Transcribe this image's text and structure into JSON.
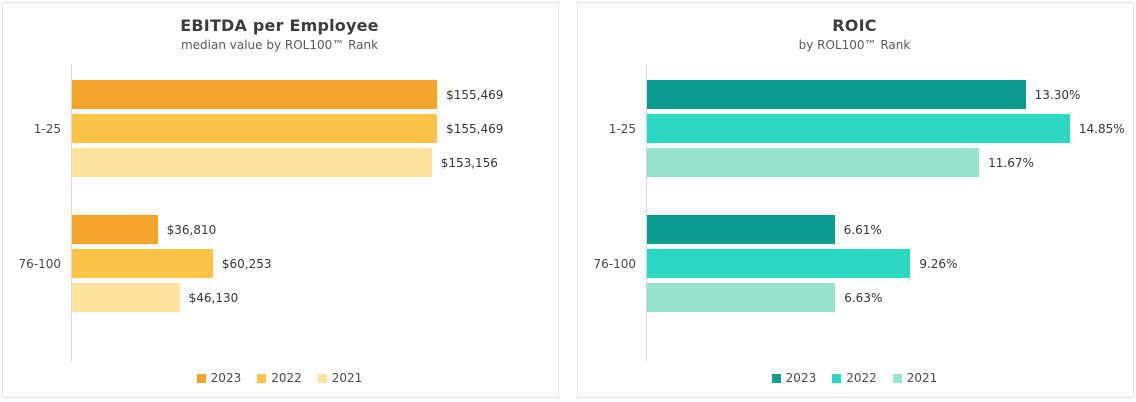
{
  "chart_data": [
    {
      "type": "bar",
      "orientation": "horizontal",
      "title": "EBITDA per Employee",
      "subtitle": "median value by ROL100™ Rank",
      "categories": [
        "1-25",
        "76-100"
      ],
      "series": [
        {
          "name": "2023",
          "color": "#F4A32B",
          "values": [
            155469,
            36810
          ],
          "labels": [
            "$155,469",
            "$36,810"
          ]
        },
        {
          "name": "2022",
          "color": "#FBC347",
          "values": [
            155469,
            60253
          ],
          "labels": [
            "$155,469",
            "$60,253"
          ]
        },
        {
          "name": "2021",
          "color": "#FCE29B",
          "values": [
            153156,
            46130
          ],
          "labels": [
            "$153,156",
            "$46,130"
          ]
        }
      ],
      "xlim": [
        0,
        200000
      ],
      "grid": false,
      "legend_position": "bottom"
    },
    {
      "type": "bar",
      "orientation": "horizontal",
      "title": "ROIC",
      "subtitle": "by ROL100™ Rank",
      "categories": [
        "1-25",
        "76-100"
      ],
      "series": [
        {
          "name": "2023",
          "color": "#0B9B8D",
          "values": [
            13.3,
            6.61
          ],
          "labels": [
            "13.30%",
            "6.61%"
          ]
        },
        {
          "name": "2022",
          "color": "#2BD8C0",
          "values": [
            14.85,
            9.26
          ],
          "labels": [
            "14.85%",
            "9.26%"
          ]
        },
        {
          "name": "2021",
          "color": "#97E5CF",
          "values": [
            11.67,
            6.63
          ],
          "labels": [
            "11.67%",
            "6.63%"
          ]
        }
      ],
      "xlim": [
        0,
        16.5
      ],
      "grid": false,
      "legend_position": "bottom"
    }
  ]
}
